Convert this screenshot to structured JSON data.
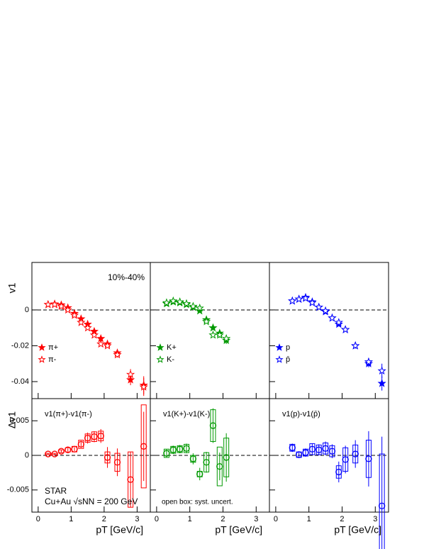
{
  "chart_data": [
    {
      "type": "scatter",
      "ylabel": "v1",
      "annotation": "10%-40%",
      "legend": "left",
      "zero_line": true,
      "xlim": [
        -0.19,
        3.4
      ],
      "ylim": [
        -0.0495,
        0.0265
      ],
      "yticks": [
        -0.04,
        -0.02,
        0
      ],
      "x": [
        0.3,
        0.5,
        0.7,
        0.9,
        1.1,
        1.3,
        1.5,
        1.7,
        1.9,
        2.1,
        2.4,
        2.8,
        3.2
      ],
      "series": [
        {
          "name": "π+",
          "color": "#ff0000",
          "marker": "star-filled",
          "values": [
            0.003,
            0.0033,
            0.0028,
            0.0012,
            -0.002,
            -0.005,
            -0.008,
            -0.012,
            -0.016,
            -0.019,
            -0.024,
            -0.039,
            -0.042
          ],
          "errors": [
            0.0002,
            0.0002,
            0.0002,
            0.0003,
            0.0003,
            0.0004,
            0.0005,
            0.0006,
            0.0008,
            0.001,
            0.0015,
            0.003,
            0.005
          ]
        },
        {
          "name": "π-",
          "color": "#ff0000",
          "marker": "star-open",
          "values": [
            0.003,
            0.003,
            0.002,
            0.0,
            -0.003,
            -0.007,
            -0.01,
            -0.014,
            -0.019,
            -0.02,
            -0.025,
            -0.036,
            -0.043
          ],
          "errors": [
            0.0002,
            0.0002,
            0.0002,
            0.0003,
            0.0003,
            0.0004,
            0.0005,
            0.0006,
            0.0008,
            0.001,
            0.0015,
            0.003,
            0.005
          ]
        }
      ]
    },
    {
      "type": "scatter",
      "legend": "left",
      "zero_line": true,
      "xlim": [
        -0.19,
        3.4
      ],
      "ylim": [
        -0.0495,
        0.0265
      ],
      "x": [
        0.3,
        0.5,
        0.7,
        0.9,
        1.1,
        1.3,
        1.5,
        1.7,
        1.9,
        2.1
      ],
      "series": [
        {
          "name": "K+",
          "color": "#009900",
          "marker": "star-filled",
          "values": [
            0.0035,
            0.0045,
            0.004,
            0.003,
            0.0015,
            -0.0005,
            -0.0055,
            -0.01,
            -0.013,
            -0.017
          ],
          "errors": [
            0.0003,
            0.0003,
            0.0003,
            0.0004,
            0.0005,
            0.0006,
            0.0008,
            0.001,
            0.0015,
            0.002
          ]
        },
        {
          "name": "K-",
          "color": "#009900",
          "marker": "star-open",
          "values": [
            0.004,
            0.005,
            0.0045,
            0.0035,
            0.002,
            0.001,
            -0.0065,
            -0.014,
            -0.014,
            -0.016
          ],
          "errors": [
            0.0003,
            0.0003,
            0.0003,
            0.0004,
            0.0005,
            0.0006,
            0.0008,
            0.001,
            0.0015,
            0.002
          ]
        }
      ]
    },
    {
      "type": "scatter",
      "legend": "left",
      "zero_line": true,
      "xlim": [
        -0.19,
        3.4
      ],
      "ylim": [
        -0.0495,
        0.0265
      ],
      "x": [
        0.5,
        0.7,
        0.9,
        1.1,
        1.3,
        1.5,
        1.7,
        1.9,
        2.1,
        2.4,
        2.8,
        3.2
      ],
      "series": [
        {
          "name": "p",
          "color": "#0000ff",
          "marker": "star-filled",
          "values": [
            0.005,
            0.006,
            0.007,
            0.0045,
            0.0015,
            -0.001,
            -0.0045,
            -0.008,
            -0.011,
            -0.02,
            -0.03,
            -0.041
          ],
          "errors": [
            0.0003,
            0.0003,
            0.0003,
            0.0004,
            0.0004,
            0.0005,
            0.0006,
            0.0008,
            0.001,
            0.0015,
            0.002,
            0.004
          ]
        },
        {
          "name": "p̄",
          "color": "#0000ff",
          "marker": "star-open",
          "values": [
            0.005,
            0.006,
            0.0065,
            0.004,
            0.0015,
            -0.0005,
            -0.0045,
            -0.007,
            -0.011,
            -0.02,
            -0.029,
            -0.034
          ],
          "errors": [
            0.0003,
            0.0003,
            0.0003,
            0.0004,
            0.0004,
            0.0005,
            0.0006,
            0.0008,
            0.001,
            0.0015,
            0.002,
            0.004
          ]
        }
      ]
    },
    {
      "type": "scatter",
      "ylabel": "Δv1",
      "xlabel": "pT [GeV/c]",
      "label": "v1(π+)-v1(π-)",
      "zero_line": true,
      "annotations": [
        "STAR",
        "Cu+Au √sNN = 200 GeV"
      ],
      "xlim": [
        -0.19,
        3.4
      ],
      "ylim": [
        -0.0082,
        0.0082
      ],
      "yticks": [
        -0.005,
        0,
        0.005
      ],
      "xticks": [
        0,
        1,
        2,
        3
      ],
      "x": [
        0.3,
        0.5,
        0.7,
        0.9,
        1.1,
        1.3,
        1.5,
        1.7,
        1.9,
        2.1,
        2.4,
        2.8,
        3.2
      ],
      "series": [
        {
          "color": "#ff0000",
          "marker": "circle-open",
          "values": [
            0.0002,
            0.0002,
            0.0006,
            0.0008,
            0.0009,
            0.0016,
            0.0025,
            0.0027,
            0.0028,
            -0.0003,
            -0.001,
            -0.0035,
            0.0013
          ],
          "errors": [
            0.0001,
            0.0001,
            0.0002,
            0.0002,
            0.0003,
            0.0005,
            0.0008,
            0.0008,
            0.001,
            0.0015,
            0.002,
            0.004,
            0.005
          ],
          "sys": [
            0.0001,
            0.0001,
            0.0002,
            0.0003,
            0.0004,
            0.0006,
            0.0006,
            0.0007,
            0.0007,
            0.0008,
            0.0013,
            0.004,
            0.006
          ]
        }
      ]
    },
    {
      "type": "scatter",
      "xlabel": "pT [GeV/c]",
      "label": "v1(K+)-v1(K-)",
      "zero_line": true,
      "annotations": [
        "open box: syst. uncert."
      ],
      "xlim": [
        -0.19,
        3.4
      ],
      "ylim": [
        -0.0082,
        0.0082
      ],
      "xticks": [
        0,
        1,
        2,
        3
      ],
      "x": [
        0.3,
        0.5,
        0.7,
        0.9,
        1.1,
        1.3,
        1.5,
        1.7,
        1.9,
        2.1
      ],
      "series": [
        {
          "color": "#009900",
          "marker": "circle-open",
          "values": [
            0.0003,
            0.0008,
            0.0009,
            0.001,
            -0.0005,
            -0.0027,
            -0.001,
            0.0043,
            -0.0016,
            -0.0003
          ],
          "errors": [
            0.0006,
            0.0006,
            0.0006,
            0.0007,
            0.0008,
            0.0009,
            0.0015,
            0.0025,
            0.002,
            0.0035
          ],
          "sys": [
            0.0006,
            0.0005,
            0.0005,
            0.0006,
            0.0005,
            0.0004,
            0.0014,
            0.0023,
            0.0028,
            0.0028
          ]
        }
      ]
    },
    {
      "type": "scatter",
      "xlabel": "pT [GeV/c]",
      "label": "v1(p)-v1(p̄)",
      "zero_line": true,
      "xlim": [
        -0.19,
        3.4
      ],
      "ylim": [
        -0.0082,
        0.0082
      ],
      "xticks": [
        0,
        1,
        2,
        3
      ],
      "x": [
        0.5,
        0.7,
        0.9,
        1.1,
        1.3,
        1.5,
        1.7,
        1.9,
        2.1,
        2.4,
        2.8,
        3.2
      ],
      "series": [
        {
          "color": "#0000ff",
          "marker": "circle-open",
          "values": [
            0.0011,
            0.0001,
            0.0004,
            0.0009,
            0.0008,
            0.001,
            0.0006,
            -0.0024,
            -0.0006,
            0.0002,
            -0.0005,
            -0.0073
          ],
          "errors": [
            0.0006,
            0.0005,
            0.0006,
            0.0008,
            0.0008,
            0.001,
            0.001,
            0.0015,
            0.002,
            0.002,
            0.004,
            0.01
          ],
          "sys": [
            0.0005,
            0.0004,
            0.0005,
            0.0008,
            0.0007,
            0.0008,
            0.0008,
            0.0009,
            0.0017,
            0.0013,
            0.0027,
            0.0075
          ]
        }
      ]
    }
  ]
}
